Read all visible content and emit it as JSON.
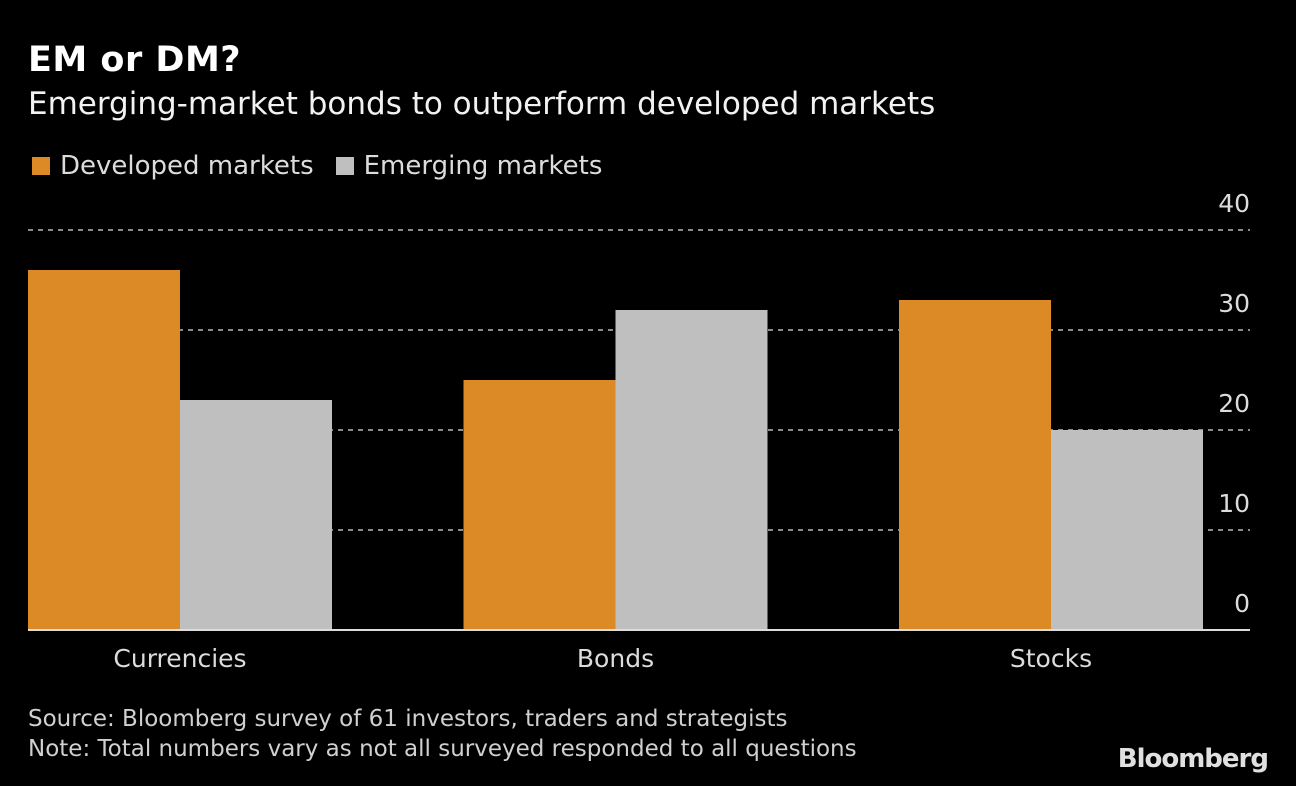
{
  "chart_data": {
    "type": "bar",
    "title": "EM or DM?",
    "subtitle": "Emerging-market bonds to outperform developed markets",
    "categories": [
      "Currencies",
      "Bonds",
      "Stocks"
    ],
    "series": [
      {
        "name": "Developed markets",
        "color": "#dc8a25",
        "values": [
          36,
          25,
          33
        ]
      },
      {
        "name": "Emerging markets",
        "color": "#bfbfbf",
        "values": [
          23,
          32,
          20
        ]
      }
    ],
    "yticks": [
      "0",
      "10",
      "20",
      "30",
      "40"
    ],
    "ylim": [
      0,
      40
    ],
    "xlabel": "",
    "ylabel": "",
    "grid": true,
    "yaxis_position": "right",
    "legend_position": "top-left"
  },
  "footer": {
    "source": "Source: Bloomberg survey of 61 investors, traders and strategists",
    "note": "Note: Total numbers vary as not all surveyed responded to all questions"
  },
  "logo": "Bloomberg"
}
